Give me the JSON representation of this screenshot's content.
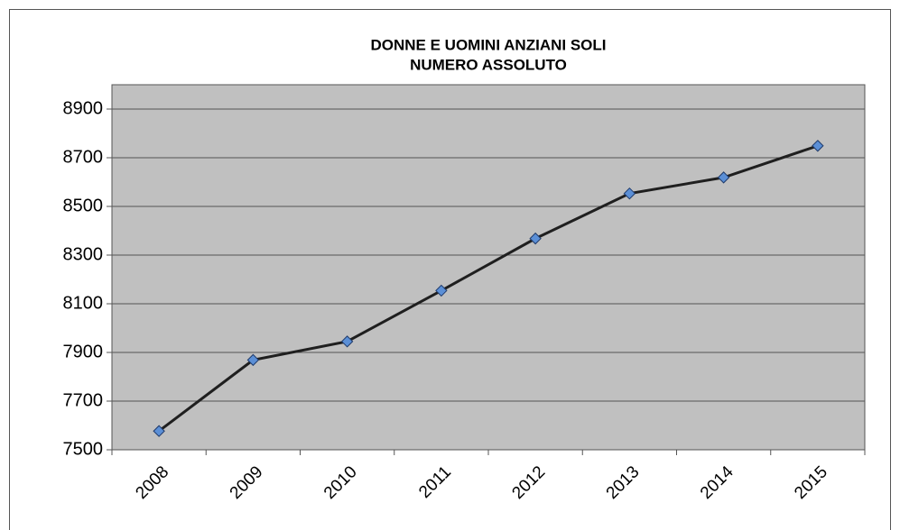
{
  "chart_data": {
    "type": "line",
    "title": "DONNE E UOMINI ANZIANI SOLI",
    "subtitle": "NUMERO ASSOLUTO",
    "categories": [
      "2008",
      "2009",
      "2010",
      "2011",
      "2012",
      "2013",
      "2014",
      "2015"
    ],
    "series": [
      {
        "name": "Numero assoluto",
        "color": "#1f1f1f",
        "marker_color": "#5b8fd6",
        "values": [
          7577,
          7869,
          7945,
          8154,
          8368,
          8553,
          8619,
          8749
        ]
      }
    ],
    "ylim": [
      7500,
      9000
    ],
    "yticks": [
      7500,
      7700,
      7900,
      8100,
      8300,
      8500,
      8700,
      8900
    ],
    "grid": true,
    "plot_background": "#c0c0c0"
  }
}
